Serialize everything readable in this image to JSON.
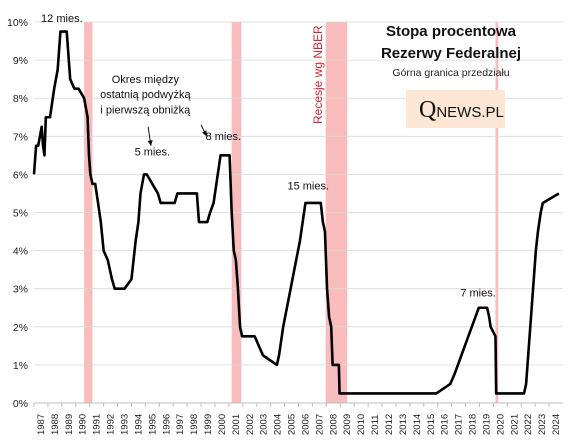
{
  "chart_data": {
    "type": "line",
    "title": "Stopa procentowa",
    "title_line2": "Rezerwy Federalnej",
    "subtitle": "Górna granica przedziału",
    "recession_label": "Recesje wg NBER",
    "logo": {
      "q": "Q",
      "rest": "NEWS.PL",
      "bg_color": "#fde6d3"
    },
    "line_color": "#000000",
    "recession_color": "#f9bcbc",
    "grid": true,
    "ylim": [
      0,
      10
    ],
    "xlim": [
      1987,
      2025
    ],
    "y_ticks": [
      {
        "v": 0,
        "label": "0%"
      },
      {
        "v": 1,
        "label": "1%"
      },
      {
        "v": 2,
        "label": "2%"
      },
      {
        "v": 3,
        "label": "3%"
      },
      {
        "v": 4,
        "label": "4%"
      },
      {
        "v": 5,
        "label": "5%"
      },
      {
        "v": 6,
        "label": "6%"
      },
      {
        "v": 7,
        "label": "7%"
      },
      {
        "v": 8,
        "label": "8%"
      },
      {
        "v": 9,
        "label": "9%"
      },
      {
        "v": 10,
        "label": "10%"
      }
    ],
    "x_ticks": [
      "1987",
      "1988",
      "1989",
      "1990",
      "1991",
      "1992",
      "1993",
      "1994",
      "1995",
      "1996",
      "1997",
      "1998",
      "1999",
      "2000",
      "2001",
      "2002",
      "2003",
      "2004",
      "2005",
      "2006",
      "2007",
      "2008",
      "2009",
      "2010",
      "2011",
      "2012",
      "2013",
      "2014",
      "2015",
      "2016",
      "2017",
      "2018",
      "2019",
      "2020",
      "2021",
      "2022",
      "2023",
      "2024"
    ],
    "recessions": [
      [
        1990.6,
        1991.2
      ],
      [
        2001.2,
        2001.9
      ],
      [
        2007.95,
        2009.5
      ],
      [
        2020.15,
        2020.35
      ]
    ],
    "annotations": [
      {
        "text": "12 mies.",
        "x": 1989.0,
        "y": 10.0
      },
      {
        "text": "Okres między",
        "x": 1995.0,
        "y": 8.4
      },
      {
        "text": "ostatnią podwyżką",
        "x": 1995.0,
        "y": 8.0
      },
      {
        "text": "i pierwszą obniżką",
        "x": 1995.0,
        "y": 7.6
      },
      {
        "text": "5 mies.",
        "x": 1995.5,
        "y": 6.5
      },
      {
        "text": "8 mies.",
        "x": 2000.6,
        "y": 6.9
      },
      {
        "text": "15 mies.",
        "x": 2006.7,
        "y": 5.6
      },
      {
        "text": "7 mies.",
        "x": 2018.9,
        "y": 2.8
      }
    ],
    "arrows": [
      {
        "from": [
          1995.2,
          7.25
        ],
        "to": [
          1995.4,
          6.75
        ]
      },
      {
        "from": [
          1999.0,
          7.3
        ],
        "to": [
          1999.4,
          7.0
        ]
      }
    ],
    "series": [
      {
        "x": [
          1987.0,
          1987.15,
          1987.3,
          1987.55,
          1987.65,
          1987.75,
          1987.85,
          1987.95,
          1988.15,
          1988.45,
          1988.7,
          1988.9,
          1989.15,
          1989.35,
          1989.6,
          1989.9,
          1990.2,
          1990.6,
          1990.85,
          1990.95,
          1991.05,
          1991.2,
          1991.4,
          1991.6,
          1991.8,
          1992.0,
          1992.3,
          1992.6,
          1992.8,
          1993.0,
          1993.5,
          1994.0,
          1994.15,
          1994.3,
          1994.5,
          1994.65,
          1994.9,
          1995.1,
          1995.5,
          1995.9,
          1996.1,
          1997.1,
          1997.3,
          1998.7,
          1998.85,
          1999.45,
          1999.65,
          1999.9,
          2000.1,
          2000.4,
          2001.05,
          2001.2,
          2001.35,
          2001.5,
          2001.65,
          2001.8,
          2001.95,
          2002.85,
          2003.45,
          2004.45,
          2004.6,
          2004.9,
          2005.3,
          2005.7,
          2006.1,
          2006.5,
          2007.6,
          2007.75,
          2007.9,
          2008.05,
          2008.2,
          2008.35,
          2008.45,
          2008.9,
          2008.95,
          2015.9,
          2016.9,
          2017.2,
          2017.45,
          2017.95,
          2018.2,
          2018.45,
          2018.7,
          2018.95,
          2019.55,
          2019.7,
          2019.8,
          2020.15,
          2020.2,
          2022.2,
          2022.35,
          2022.45,
          2022.6,
          2022.75,
          2022.9,
          2023.05,
          2023.2,
          2023.4,
          2023.55,
          2024.7
        ],
        "y": [
          6.0,
          6.75,
          6.75,
          7.25,
          6.75,
          6.5,
          7.5,
          7.5,
          7.5,
          8.25,
          8.75,
          9.75,
          9.75,
          9.75,
          8.5,
          8.25,
          8.25,
          8.0,
          7.5,
          6.5,
          6.0,
          5.75,
          5.75,
          5.25,
          4.75,
          4.0,
          3.75,
          3.25,
          3.0,
          3.0,
          3.0,
          3.25,
          3.75,
          4.25,
          4.75,
          5.5,
          6.0,
          6.0,
          5.75,
          5.5,
          5.25,
          5.25,
          5.5,
          5.5,
          4.75,
          4.75,
          5.0,
          5.25,
          5.75,
          6.5,
          6.5,
          5.0,
          4.0,
          3.75,
          3.0,
          2.0,
          1.75,
          1.75,
          1.25,
          1.0,
          1.25,
          2.0,
          2.75,
          3.5,
          4.25,
          5.25,
          5.25,
          4.75,
          4.5,
          3.0,
          2.25,
          2.0,
          1.0,
          1.0,
          0.25,
          0.25,
          0.5,
          0.75,
          1.0,
          1.5,
          1.75,
          2.0,
          2.25,
          2.5,
          2.5,
          2.25,
          2.0,
          1.75,
          0.25,
          0.25,
          0.5,
          1.0,
          1.75,
          2.5,
          3.25,
          4.0,
          4.5,
          5.0,
          5.25,
          5.5
        ]
      }
    ]
  }
}
